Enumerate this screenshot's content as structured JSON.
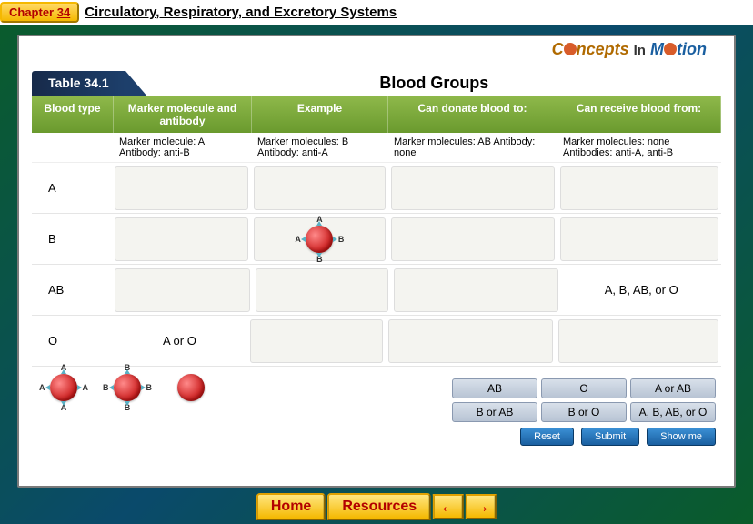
{
  "header": {
    "chapter_word": "Chapter",
    "chapter_num": "34",
    "title": "Circulatory, Respiratory, and Excretory Systems"
  },
  "logo": {
    "left": "C",
    "mid": "ncepts",
    "in": "In",
    "m": "M",
    "end": "tion"
  },
  "table": {
    "label": "Table 34.1",
    "title": "Blood Groups",
    "headers": {
      "c1": "Blood type",
      "c2": "Marker molecule and antibody",
      "c3": "Example",
      "c4": "Can donate blood to:",
      "c5": "Can receive blood from:"
    },
    "info": {
      "c2": "Marker molecule: A Antibody: anti-B",
      "c3": "Marker molecules: B Antibody: anti-A",
      "c4": "Marker molecules: AB Antibody: none",
      "c5": "Marker molecules: none Antibodies: anti-A, anti-B"
    },
    "rows": [
      {
        "label": "A"
      },
      {
        "label": "B"
      },
      {
        "label": "AB",
        "receive": "A, B, AB, or O"
      },
      {
        "label": "O",
        "marker": "A or O"
      }
    ]
  },
  "palette_markers": [
    "A",
    "B"
  ],
  "answer_buttons": [
    "AB",
    "O",
    "A or AB",
    "B or AB",
    "B or O",
    "A, B, AB, or O"
  ],
  "controls": {
    "reset": "Reset",
    "submit": "Submit",
    "showme": "Show me"
  },
  "tabs": {
    "home": "Home",
    "resources": "Resources"
  },
  "colors": {
    "header_green": "#6a9a2e",
    "tab_gold": "#f5b800",
    "blue_btn": "#1a5fa0",
    "blood": "#c91818"
  }
}
